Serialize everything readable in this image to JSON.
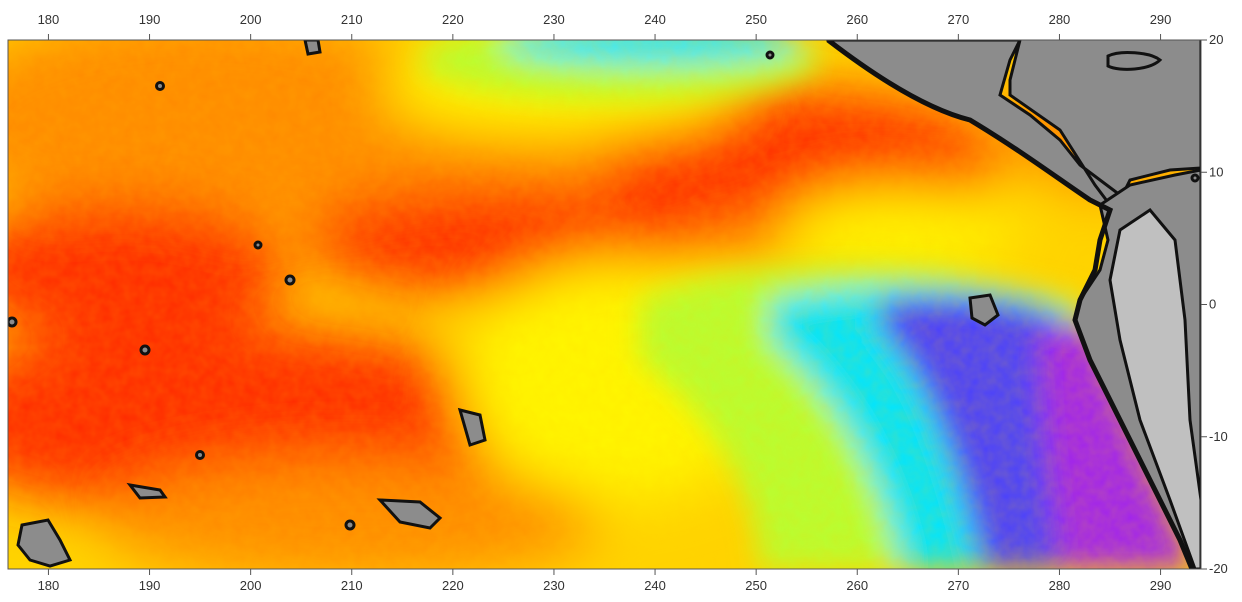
{
  "map": {
    "x_axis": {
      "top_ticks": [
        "180",
        "190",
        "200",
        "210",
        "220",
        "230",
        "240",
        "250",
        "260",
        "270",
        "280",
        "290"
      ],
      "bottom_ticks": [
        "180",
        "190",
        "200",
        "210",
        "220",
        "230",
        "240",
        "250",
        "260",
        "270",
        "280",
        "290"
      ],
      "range": [
        176,
        294
      ]
    },
    "y_axis": {
      "right_ticks": [
        "20",
        "10",
        "0",
        "-10",
        "-20"
      ],
      "range": [
        -20,
        20
      ]
    },
    "colors": {
      "warmest": "#ff2a00",
      "warm": "#ff8a00",
      "mild": "#ffd400",
      "neutral": "#fff700",
      "cool": "#b8ff30",
      "cooler": "#00e5ff",
      "cold": "#4a40ff",
      "coldest": "#a020f0",
      "land": "#8c8c8c",
      "land_highland": "#c0c0c0",
      "coastline": "#111111"
    }
  }
}
